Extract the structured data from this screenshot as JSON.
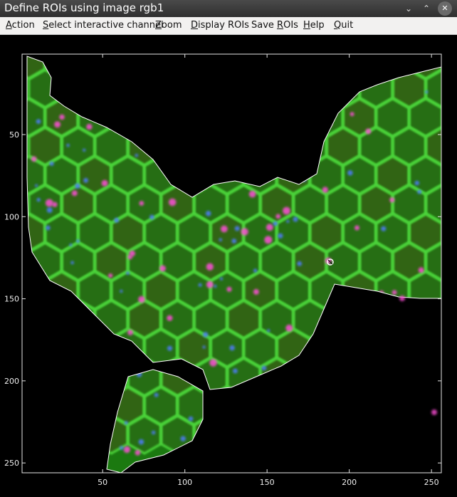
{
  "window": {
    "title": "Define ROIs using image rgb1",
    "minimize_glyph": "⌄",
    "maximize_glyph": "⌃",
    "close_glyph": "✕"
  },
  "menu": [
    {
      "label": "Action",
      "mnemonic_index": 0
    },
    {
      "label": "Select interactive channel",
      "mnemonic_index": 0
    },
    {
      "label": "Zoom",
      "mnemonic_index": 0
    },
    {
      "label": "Display ROIs",
      "mnemonic_index": 0
    },
    {
      "label": "Save ROIs",
      "mnemonic_index": 5
    },
    {
      "label": "Help",
      "mnemonic_index": 0
    },
    {
      "label": "Quit",
      "mnemonic_index": 0
    }
  ],
  "image_panel": {
    "x_ticks": [
      "50",
      "100",
      "150",
      "200",
      "250"
    ],
    "y_ticks": [
      "50",
      "100",
      "150",
      "200",
      "250"
    ],
    "x_tick_values": [
      50,
      100,
      150,
      200,
      250
    ],
    "y_tick_values": [
      50,
      100,
      150,
      200,
      250
    ],
    "xlim": [
      1,
      256
    ],
    "ylim": [
      1,
      256
    ],
    "colors": {
      "cell_fill": "#1f8a12",
      "cell_wall": "#4bd63a",
      "roi_outline": "#ffffff",
      "spot_magenta": "#ff4fd8",
      "spot_blue": "#4f7bff",
      "background": "#000000"
    }
  }
}
